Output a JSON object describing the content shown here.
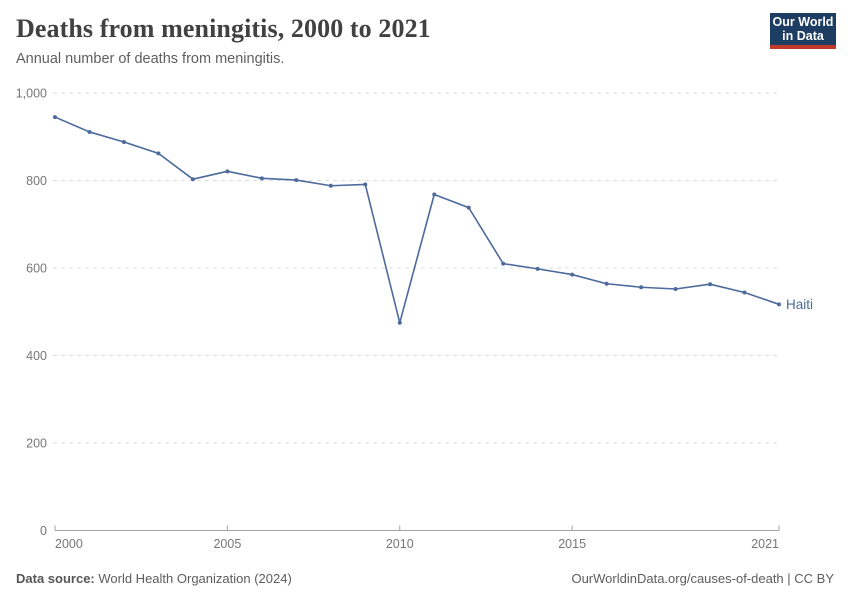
{
  "header": {
    "title": "Deaths from meningitis, 2000 to 2021",
    "subtitle": "Annual number of deaths from meningitis.",
    "logo": {
      "line1": "Our World",
      "line2": "in Data",
      "bg_color": "#1d3d63",
      "accent_color": "#c0392b"
    }
  },
  "chart_data": {
    "type": "line",
    "title": "Deaths from meningitis, 2000 to 2021",
    "x": [
      2000,
      2001,
      2002,
      2003,
      2004,
      2005,
      2006,
      2007,
      2008,
      2009,
      2010,
      2011,
      2012,
      2013,
      2014,
      2015,
      2016,
      2017,
      2018,
      2019,
      2020,
      2021
    ],
    "series": [
      {
        "name": "Haiti",
        "color": "#4c6a9c",
        "values": [
          945,
          911,
          888,
          862,
          803,
          821,
          805,
          801,
          788,
          791,
          475,
          768,
          738,
          610,
          598,
          585,
          564,
          556,
          552,
          563,
          544,
          517
        ]
      }
    ],
    "xlabel": "",
    "ylabel": "",
    "xlim": [
      2000,
      2021
    ],
    "ylim": [
      0,
      1000
    ],
    "y_ticks": [
      0,
      200,
      400,
      600,
      800,
      1000
    ],
    "y_tick_labels": [
      "0",
      "200",
      "400",
      "600",
      "800",
      "1,000"
    ],
    "x_ticks": [
      2000,
      2005,
      2010,
      2015,
      2021
    ],
    "x_tick_labels": [
      "2000",
      "2005",
      "2010",
      "2015",
      "2021"
    ],
    "grid": "horizontal dashed",
    "legend_position": "line-end label",
    "colors": {
      "grid": "#dcdcdc",
      "axis": "#a3a3a3",
      "tick_label": "#767676",
      "line": "#4c6a9c"
    }
  },
  "footer": {
    "source_label": "Data source:",
    "source_value": " World Health Organization (2024)",
    "credit": "OurWorldinData.org/causes-of-death | CC BY"
  }
}
